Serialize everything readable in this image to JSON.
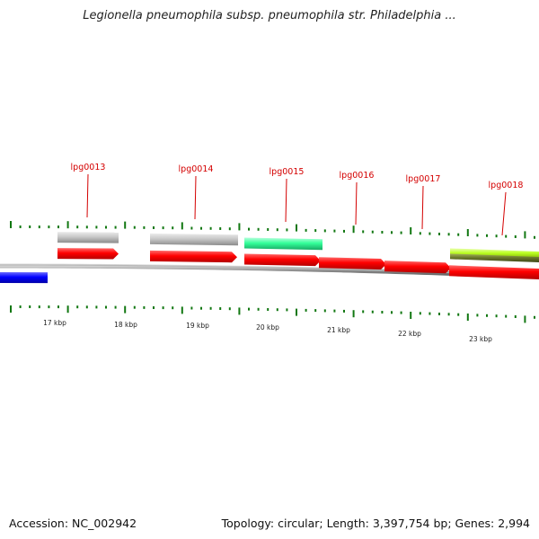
{
  "header": {
    "title": "Legionella pneumophila subsp. pneumophila str. Philadelphia ..."
  },
  "footer": {
    "accession": "Accession: NC_002942",
    "summary": "Topology: circular; Length: 3,397,754 bp; Genes: 2,994"
  },
  "map": {
    "position_ticks": [
      {
        "label": "17 kbp",
        "kbp": 17
      },
      {
        "label": "18 kbp",
        "kbp": 18
      },
      {
        "label": "19 kbp",
        "kbp": 19
      },
      {
        "label": "20 kbp",
        "kbp": 20
      },
      {
        "label": "21 kbp",
        "kbp": 21
      },
      {
        "label": "22 kbp",
        "kbp": 22
      },
      {
        "label": "23 kbp",
        "kbp": 23
      }
    ],
    "gene_labels": [
      {
        "name": "lpg0013"
      },
      {
        "name": "lpg0014"
      },
      {
        "name": "lpg0015"
      },
      {
        "name": "lpg0016"
      },
      {
        "name": "lpg0017"
      },
      {
        "name": "lpg0018"
      }
    ],
    "colors": {
      "cds_forward": "#ff0000",
      "cds_reverse": "#0000ff",
      "feature_grey": "#c8c8c8",
      "feature_green": "#33ff99",
      "feature_yellowgreen": "#bbff22",
      "feature_olive": "#6b7a2a",
      "backbone": "#8c8c8c",
      "tick_green": "#117711",
      "label_red": "#d40000"
    }
  }
}
